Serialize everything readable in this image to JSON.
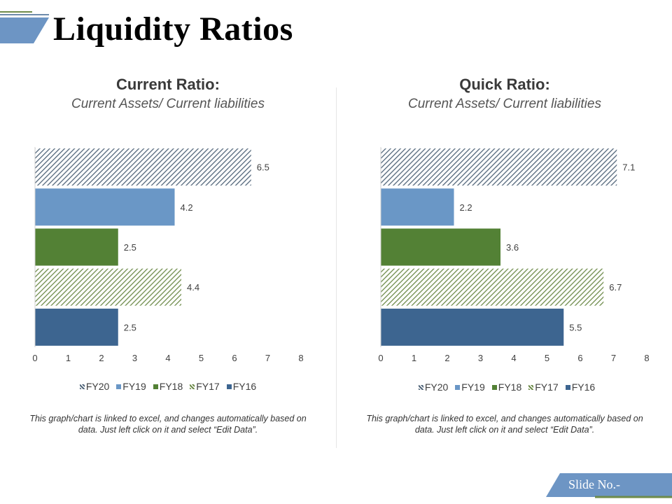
{
  "page": {
    "title": "Liquidity Ratios",
    "slide_no_label": "Slide No.-"
  },
  "colors": {
    "accent": "#6D95C4",
    "fy20": "#52667A",
    "fy19": "#6A97C6",
    "fy18": "#538135",
    "fy17": "#6E8B4A",
    "fy16": "#3D6590"
  },
  "left_panel": {
    "title": "Current Ratio:",
    "subtitle": "Current Assets/ Current liabilities",
    "note": "This graph/chart is linked to excel, and changes automatically based on data. Just left click on it and select “Edit Data”."
  },
  "right_panel": {
    "title": "Quick Ratio:",
    "subtitle": "Current Assets/ Current liabilities",
    "note": "This graph/chart is linked to excel, and changes automatically based on data. Just left click on it and select “Edit Data”."
  },
  "chart_data": [
    {
      "type": "bar",
      "orientation": "horizontal",
      "title": "Current Ratio:",
      "subtitle": "Current Assets/ Current liabilities",
      "categories": [
        "FY20",
        "FY19",
        "FY18",
        "FY17",
        "FY16"
      ],
      "values": [
        6.5,
        4.2,
        2.5,
        4.4,
        2.5
      ],
      "xlim": [
        0,
        8
      ],
      "xticks": [
        0,
        1,
        2,
        3,
        4,
        5,
        6,
        7,
        8
      ],
      "legend": [
        "FY20",
        "FY19",
        "FY18",
        "FY17",
        "FY16"
      ],
      "legend_position": "bottom",
      "grid": false
    },
    {
      "type": "bar",
      "orientation": "horizontal",
      "title": "Quick Ratio:",
      "subtitle": "Current Assets/ Current liabilities",
      "categories": [
        "FY20",
        "FY19",
        "FY18",
        "FY17",
        "FY16"
      ],
      "values": [
        7.1,
        2.2,
        3.6,
        6.7,
        5.5
      ],
      "xlim": [
        0,
        8
      ],
      "xticks": [
        0,
        1,
        2,
        3,
        4,
        5,
        6,
        7,
        8
      ],
      "legend": [
        "FY20",
        "FY19",
        "FY18",
        "FY17",
        "FY16"
      ],
      "legend_position": "bottom",
      "grid": false
    }
  ]
}
